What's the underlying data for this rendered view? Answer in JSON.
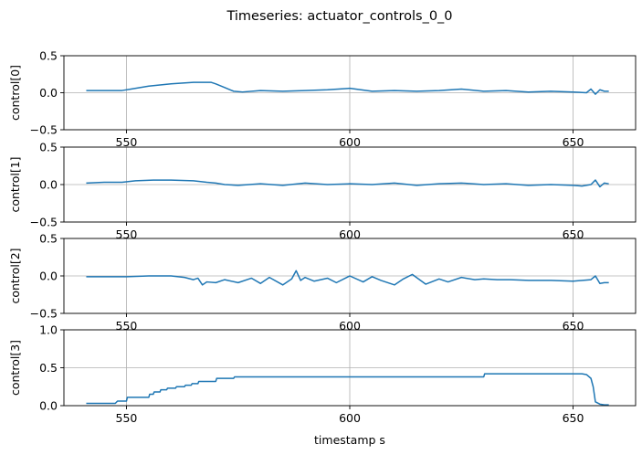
{
  "chart_data": {
    "type": "line",
    "title": "Timeseries: actuator_controls_0_0",
    "xlabel": "timestamp s",
    "xlim": [
      536,
      664
    ],
    "xticks": [
      550,
      600,
      650
    ],
    "grid": true,
    "line_color": "#1f77b4",
    "panels": [
      {
        "ylabel": "control[0]",
        "ylim": [
          -0.5,
          0.5
        ],
        "yticks": [
          -0.5,
          0.0,
          0.5
        ],
        "series": [
          {
            "x": [
              541,
              545,
              549,
              551,
              555,
              560,
              565,
              569,
              570,
              572,
              574,
              576,
              580,
              585,
              590,
              595,
              600,
              605,
              610,
              615,
              620,
              625,
              630,
              635,
              640,
              645,
              650,
              653,
              654,
              655,
              656,
              657,
              658
            ],
            "y": [
              0.03,
              0.03,
              0.03,
              0.05,
              0.09,
              0.12,
              0.14,
              0.14,
              0.12,
              0.07,
              0.02,
              0.01,
              0.03,
              0.02,
              0.03,
              0.04,
              0.06,
              0.02,
              0.03,
              0.02,
              0.03,
              0.05,
              0.02,
              0.03,
              0.01,
              0.02,
              0.01,
              0.0,
              0.05,
              -0.02,
              0.04,
              0.02,
              0.02
            ]
          }
        ]
      },
      {
        "ylabel": "control[1]",
        "ylim": [
          -0.5,
          0.5
        ],
        "yticks": [
          -0.5,
          0.0,
          0.5
        ],
        "series": [
          {
            "x": [
              541,
              545,
              549,
              552,
              556,
              560,
              565,
              568,
              570,
              572,
              575,
              580,
              585,
              590,
              595,
              600,
              605,
              610,
              615,
              620,
              625,
              630,
              635,
              640,
              645,
              650,
              652,
              654,
              655,
              656,
              657,
              658
            ],
            "y": [
              0.02,
              0.03,
              0.03,
              0.05,
              0.06,
              0.06,
              0.05,
              0.03,
              0.02,
              0.0,
              -0.01,
              0.01,
              -0.01,
              0.02,
              0.0,
              0.01,
              0.0,
              0.02,
              -0.01,
              0.01,
              0.02,
              0.0,
              0.01,
              -0.01,
              0.0,
              -0.01,
              -0.02,
              0.0,
              0.06,
              -0.03,
              0.02,
              0.01
            ]
          }
        ]
      },
      {
        "ylabel": "control[2]",
        "ylim": [
          -0.5,
          0.5
        ],
        "yticks": [
          -0.5,
          0.0,
          0.5
        ],
        "series": [
          {
            "x": [
              541,
              545,
              550,
              555,
              560,
              563,
              565,
              566,
              567,
              568,
              570,
              572,
              575,
              578,
              580,
              582,
              585,
              587,
              588,
              589,
              590,
              592,
              595,
              597,
              600,
              603,
              605,
              607,
              610,
              612,
              614,
              617,
              620,
              622,
              625,
              628,
              630,
              633,
              636,
              640,
              645,
              650,
              654,
              655,
              656,
              657,
              658
            ],
            "y": [
              -0.01,
              -0.01,
              -0.01,
              0.0,
              0.0,
              -0.02,
              -0.05,
              -0.03,
              -0.12,
              -0.08,
              -0.09,
              -0.05,
              -0.09,
              -0.03,
              -0.1,
              -0.02,
              -0.12,
              -0.04,
              0.07,
              -0.06,
              -0.02,
              -0.07,
              -0.03,
              -0.09,
              0.0,
              -0.08,
              -0.01,
              -0.06,
              -0.12,
              -0.04,
              0.02,
              -0.11,
              -0.04,
              -0.08,
              -0.02,
              -0.05,
              -0.04,
              -0.05,
              -0.05,
              -0.06,
              -0.06,
              -0.07,
              -0.05,
              0.0,
              -0.1,
              -0.09,
              -0.09
            ]
          }
        ]
      },
      {
        "ylabel": "control[3]",
        "ylim": [
          0.0,
          1.0
        ],
        "yticks": [
          0.0,
          0.5,
          1.0
        ],
        "series": [
          {
            "x": [
              541,
              547.5,
              548,
              550,
              550.2,
              555,
              555.2,
              556,
              556.2,
              557.5,
              557.7,
              559,
              559.2,
              561,
              561.2,
              563,
              563.2,
              564.5,
              564.7,
              566,
              566.2,
              570,
              570.2,
              574,
              574.2,
              580,
              590,
              600,
              610,
              620,
              630,
              630.2,
              640,
              650,
              652,
              653,
              654,
              654.5,
              655,
              656,
              657,
              658
            ],
            "y": [
              0.03,
              0.03,
              0.06,
              0.06,
              0.11,
              0.11,
              0.15,
              0.15,
              0.18,
              0.18,
              0.21,
              0.21,
              0.23,
              0.23,
              0.25,
              0.25,
              0.27,
              0.27,
              0.29,
              0.29,
              0.32,
              0.32,
              0.36,
              0.36,
              0.38,
              0.38,
              0.38,
              0.38,
              0.38,
              0.38,
              0.38,
              0.42,
              0.42,
              0.42,
              0.42,
              0.41,
              0.36,
              0.25,
              0.05,
              0.02,
              0.01,
              0.01
            ]
          }
        ]
      }
    ]
  }
}
